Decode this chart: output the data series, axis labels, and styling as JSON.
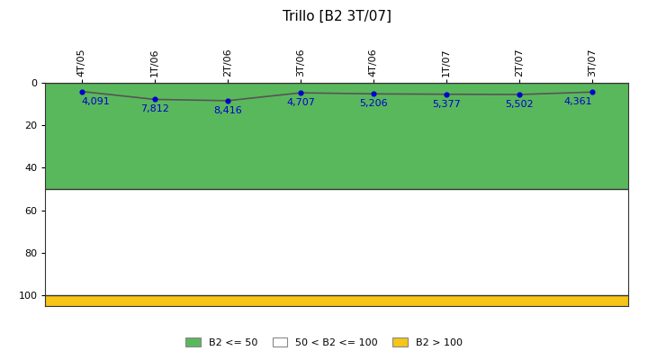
{
  "title": "Trillo [B2 3T/07]",
  "x_labels": [
    "4T/05",
    "1T/06",
    "2T/06",
    "3T/06",
    "4T/06",
    "1T/07",
    "2T/07",
    "3T/07"
  ],
  "y_values": [
    4.091,
    7.812,
    8.416,
    4.707,
    5.206,
    5.377,
    5.502,
    4.361
  ],
  "y_labels_display": [
    "4,091",
    "7,812",
    "8,416",
    "4,707",
    "5,206",
    "5,377",
    "5,502",
    "4,361"
  ],
  "ylim_min": 0,
  "ylim_max": 105,
  "yticks": [
    0,
    20,
    40,
    60,
    80,
    100
  ],
  "zone_green_min": 0,
  "zone_green_max": 50,
  "zone_white_min": 50,
  "zone_white_max": 100,
  "zone_yellow_min": 100,
  "zone_yellow_max": 105,
  "green_color": "#5ab85c",
  "yellow_color": "#f5c518",
  "white_color": "#ffffff",
  "line_color": "#555555",
  "dot_color": "#0000cc",
  "label_color": "#0000cc",
  "title_fontsize": 11,
  "tick_fontsize": 8,
  "label_fontsize": 8,
  "legend_fontsize": 8,
  "background_color": "#ffffff",
  "border_color": "#333333"
}
